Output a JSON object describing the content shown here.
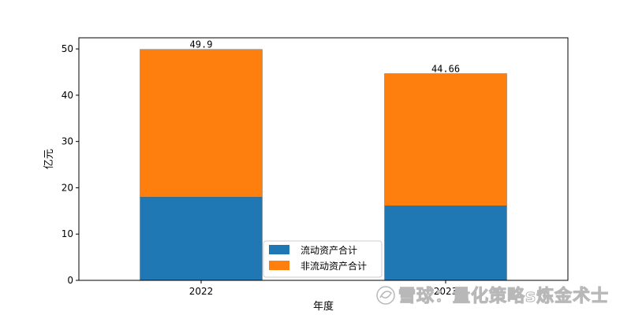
{
  "chart_data": {
    "type": "bar",
    "stacked": true,
    "categories": [
      "2022",
      "2023"
    ],
    "series": [
      {
        "name": "流动资产合计",
        "values": [
          18.0,
          16.1
        ],
        "color": "#1f77b4"
      },
      {
        "name": "非流动资产合计",
        "values": [
          31.9,
          28.56
        ],
        "color": "#ff7f0e"
      }
    ],
    "totals": [
      "49.9",
      "44.66"
    ],
    "xlabel": "年度",
    "ylabel": "亿元",
    "ylim": [
      0,
      52.4
    ],
    "yticks": [
      0,
      10,
      20,
      30,
      40,
      50
    ],
    "grid": false,
    "legend_position": "bottom-center"
  },
  "watermark": "雪球：量化策略s炼金术士"
}
